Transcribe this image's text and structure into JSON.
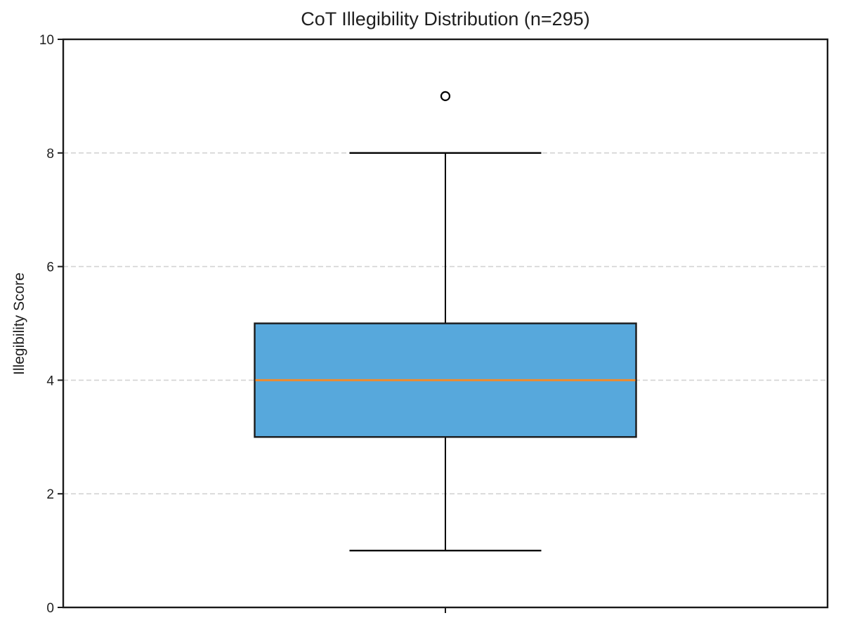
{
  "chart_data": {
    "type": "box",
    "title": "CoT Illegibility Distribution (n=295)",
    "ylabel": "Illegibility Score",
    "xlabel": "",
    "ylim": [
      0,
      10
    ],
    "yticks": [
      0,
      2,
      4,
      6,
      8,
      10
    ],
    "grid": {
      "axis": "y",
      "style": "dashed",
      "at": [
        2,
        4,
        6,
        8
      ]
    },
    "legend": "none",
    "series": [
      {
        "name": "CoT Illegibility",
        "whisker_low": 1,
        "q1": 3,
        "median": 4,
        "q3": 5,
        "whisker_high": 8,
        "outliers": [
          9
        ]
      }
    ],
    "colors": {
      "box_fill": "#57A8DC",
      "box_edge": "#1a1a1a",
      "median": "#EE8B2F",
      "whisker": "#000000",
      "outlier_edge": "#000000",
      "outlier_fill": "#ffffff",
      "grid": "#d3d3d3",
      "axis": "#1a1a1a",
      "text": "#1f1f1f",
      "background": "#ffffff"
    }
  }
}
